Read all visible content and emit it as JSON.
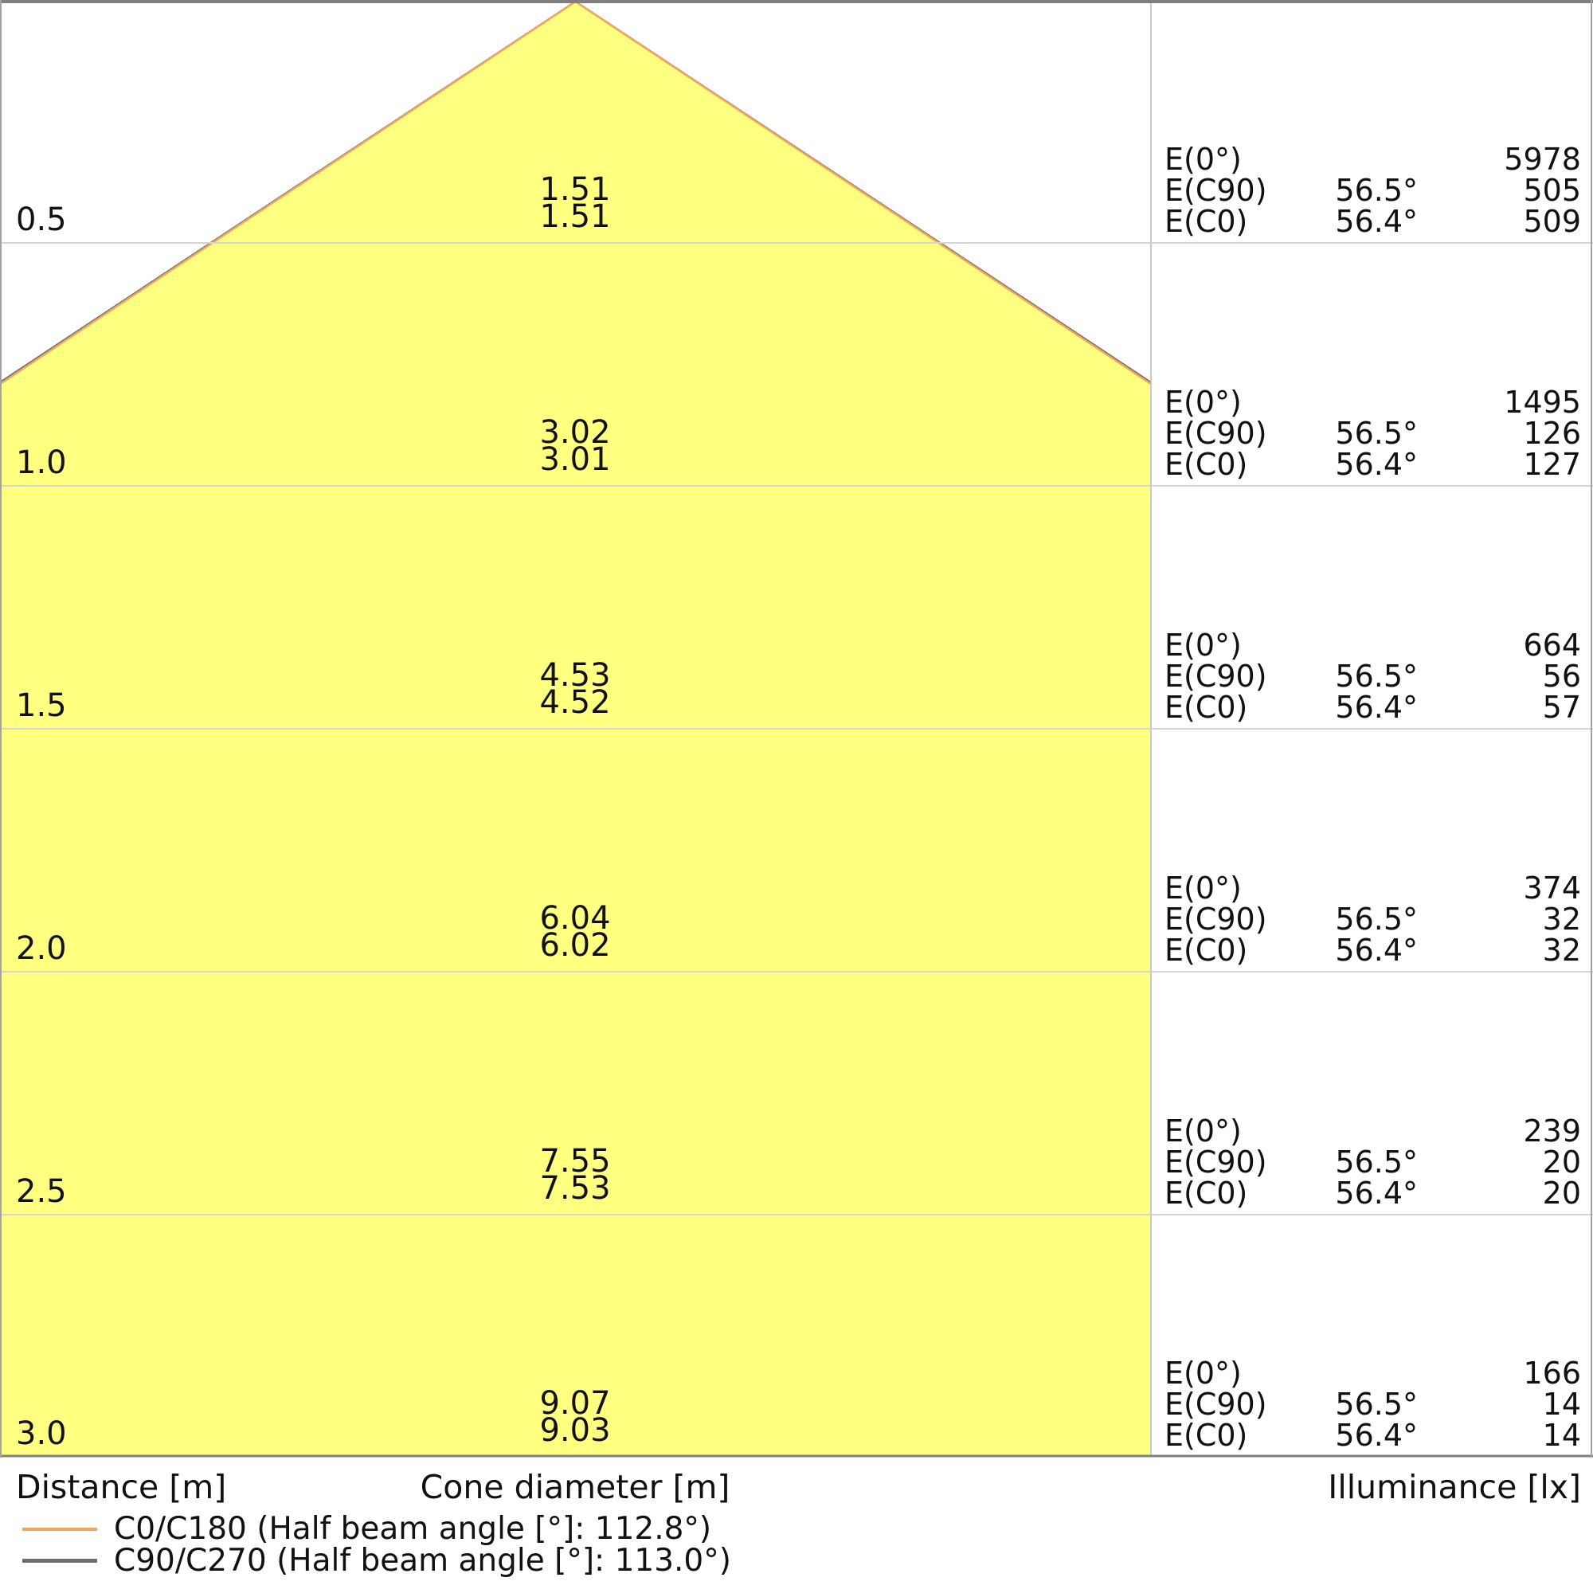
{
  "chart_data": {
    "type": "line",
    "subtype": "light-cone-diagram",
    "title": "",
    "xlabel": "Cone diameter [m]",
    "ylabel": "Distance [m]",
    "right_panel_label": "Illuminance [lx]",
    "distances_m": [
      0.5,
      1.0,
      1.5,
      2.0,
      2.5,
      3.0
    ],
    "ylim": [
      0,
      3.0
    ],
    "grid": true,
    "legend_position": "bottom-left",
    "planes": [
      {
        "name": "C0/C180",
        "half_beam_angle_deg": 112.8,
        "color": "#F2A35C",
        "cone_diameters_m": [
          1.51,
          3.01,
          4.52,
          6.02,
          7.53,
          9.03
        ]
      },
      {
        "name": "C90/C270",
        "half_beam_angle_deg": 113.0,
        "color": "#6E6E6E",
        "cone_diameters_m": [
          1.51,
          3.02,
          4.53,
          6.04,
          7.55,
          9.07
        ]
      }
    ],
    "illuminance_lx": {
      "E0": [
        5978,
        1495,
        664,
        374,
        239,
        166
      ],
      "EC90_at_56_5_deg": [
        505,
        126,
        56,
        32,
        20,
        14
      ],
      "EC0_at_56_4_deg": [
        509,
        127,
        57,
        32,
        20,
        14
      ]
    }
  },
  "colors": {
    "cone_fill": "#FFFF80",
    "grid_line": "#D5D5D5",
    "divider": "#C9C9C9",
    "border_dark": "#7F7F7F",
    "border_side": "#A3A3A3"
  },
  "labels": {
    "e0": "E(0°)",
    "ec90": "E(C90)",
    "ec0": "E(C0)",
    "angle_c90": "56.5°",
    "angle_c0": "56.4°"
  },
  "axis": {
    "distance": "Distance [m]",
    "cone": "Cone diameter [m]",
    "illuminance": "Illuminance [lx]"
  },
  "display": {
    "rows": [
      {
        "distance": "0.5",
        "cone_upper": "1.51",
        "cone_lower": "1.51",
        "e0": "5978",
        "ec90": "505",
        "ec0": "509"
      },
      {
        "distance": "1.0",
        "cone_upper": "3.02",
        "cone_lower": "3.01",
        "e0": "1495",
        "ec90": "126",
        "ec0": "127"
      },
      {
        "distance": "1.5",
        "cone_upper": "4.53",
        "cone_lower": "4.52",
        "e0": "664",
        "ec90": "56",
        "ec0": "57"
      },
      {
        "distance": "2.0",
        "cone_upper": "6.04",
        "cone_lower": "6.02",
        "e0": "374",
        "ec90": "32",
        "ec0": "32"
      },
      {
        "distance": "2.5",
        "cone_upper": "7.55",
        "cone_lower": "7.53",
        "e0": "239",
        "ec90": "20",
        "ec0": "20"
      },
      {
        "distance": "3.0",
        "cone_upper": "9.07",
        "cone_lower": "9.03",
        "e0": "166",
        "ec90": "14",
        "ec0": "14"
      }
    ]
  },
  "legend": {
    "items": [
      {
        "label": "C0/C180 (Half beam angle [°]: 112.8°)"
      },
      {
        "label": "C90/C270 (Half beam angle [°]: 113.0°)"
      }
    ]
  }
}
